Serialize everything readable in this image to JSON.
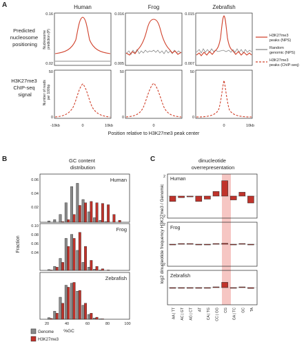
{
  "panel_letters": [
    "A",
    "B",
    "C"
  ],
  "panelA": {
    "columns": [
      "Human",
      "Frog",
      "Zebrafish"
    ],
    "row_labels": {
      "top": [
        "Predicted",
        "nucleosome",
        "positioning"
      ],
      "bottom": [
        "H3K27me3",
        "ChIP-seq",
        "signal"
      ]
    },
    "y_titles": {
      "top": [
        "Nucleosome",
        "prediction (P)"
      ],
      "bottom": [
        "Number of reads",
        "per 100bp"
      ]
    },
    "top_ticks": {
      "human": [
        "0.16",
        "0.02"
      ],
      "frog": [
        "0.016",
        "0.005"
      ],
      "zebrafish": [
        "0.015",
        "0.007"
      ]
    },
    "bottom_ticks": [
      "50",
      "0"
    ],
    "x_ticks": [
      "-10kb",
      "0",
      "10kb"
    ],
    "x_title": "Position relative to H3K27me3 peak center",
    "legend": [
      {
        "label": [
          "H3K27me3",
          "peaks (NPS)"
        ],
        "color": "#d0402a",
        "style": "solid"
      },
      {
        "label": [
          "Random",
          "genomic (NPS)"
        ],
        "color": "#888888",
        "style": "solid"
      },
      {
        "label": [
          "H3K27me3",
          "peaks (ChIP-seq)"
        ],
        "color": "#d0402a",
        "style": "dashed"
      }
    ]
  },
  "panelB": {
    "title": [
      "GC content",
      "distribution"
    ],
    "y_title": "Fraction",
    "x_title": "%GC",
    "x_ticks": [
      "20",
      "40",
      "60",
      "80",
      "100"
    ],
    "colors": {
      "genome": "#8a8a8a",
      "h3k27me3": "#c0332b"
    },
    "legend": [
      {
        "label": "Genome",
        "color": "#8a8a8a"
      },
      {
        "label": "H3K27me3",
        "color": "#c0332b"
      }
    ],
    "panels": [
      {
        "name": "Human",
        "yticks": [
          "0.06",
          "0.04",
          "0.02"
        ],
        "ymax": 0.07,
        "genome": [
          0,
          0.002,
          0.004,
          0.012,
          0.03,
          0.055,
          0.06,
          0.035,
          0.016,
          0.007,
          0.003,
          0.001,
          0,
          0,
          0
        ],
        "h3k27me3": [
          0,
          0,
          0,
          0.001,
          0.004,
          0.012,
          0.026,
          0.03,
          0.032,
          0.03,
          0.029,
          0.027,
          0.012,
          0.003,
          0
        ]
      },
      {
        "name": "Frog",
        "yticks": [
          "0.10",
          "0.08",
          "0.06",
          "0.04"
        ],
        "ymax": 0.11,
        "genome": [
          0,
          0.002,
          0.01,
          0.03,
          0.08,
          0.09,
          0.05,
          0.02,
          0.008,
          0.003,
          0.001,
          0,
          0,
          0,
          0
        ],
        "h3k27me3": [
          0,
          0.001,
          0.008,
          0.02,
          0.06,
          0.08,
          0.095,
          0.06,
          0.025,
          0.01,
          0.004,
          0.001,
          0,
          0,
          0
        ]
      },
      {
        "name": "Zebrafish",
        "yticks": [],
        "ymax": 0.11,
        "genome": [
          0,
          0.004,
          0.02,
          0.055,
          0.085,
          0.09,
          0.07,
          0.035,
          0.012,
          0.003,
          0.001,
          0,
          0,
          0,
          0
        ],
        "h3k27me3": [
          0,
          0.002,
          0.015,
          0.04,
          0.08,
          0.092,
          0.072,
          0.04,
          0.015,
          0.005,
          0.001,
          0,
          0,
          0,
          0
        ]
      }
    ]
  },
  "panelC": {
    "title": [
      "dinucleotide",
      "overrepresentation"
    ],
    "y_title": "log2 dinucleotide frequency H3K27me3 / Genomic",
    "y_ticks": [
      "2",
      "0",
      "-2"
    ],
    "highlight": "CG",
    "categories": [
      "AA | TT",
      "AC | GT",
      "AG | CT",
      "AT",
      "CA | TG",
      "CC | GG",
      "CG",
      "GA | TC",
      "GC",
      "TA"
    ],
    "bar_color": "#c0332b",
    "highlight_color": "#f4b8b4",
    "panels": [
      {
        "name": "Human",
        "values": [
          -0.7,
          -0.2,
          -0.1,
          -0.7,
          -0.4,
          0.6,
          2.0,
          -0.5,
          0.5,
          -0.9
        ]
      },
      {
        "name": "Frog",
        "values": [
          -0.05,
          0.04,
          0.03,
          -0.05,
          -0.03,
          0.05,
          0.12,
          -0.04,
          0.04,
          -0.06
        ]
      },
      {
        "name": "Zebrafish",
        "values": [
          -0.12,
          -0.06,
          -0.04,
          -0.12,
          -0.06,
          0.12,
          0.9,
          -0.08,
          0.1,
          -0.14
        ]
      }
    ]
  }
}
